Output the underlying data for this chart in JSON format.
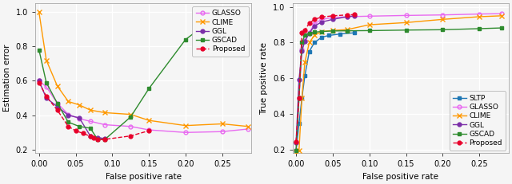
{
  "plot1": {
    "xlabel": "False positive rate",
    "ylabel": "Estimation error",
    "xlim": [
      -0.005,
      0.29
    ],
    "ylim": [
      0.18,
      1.05
    ],
    "xticks": [
      0.0,
      0.05,
      0.1,
      0.15,
      0.2,
      0.25
    ],
    "yticks": [
      0.2,
      0.4,
      0.6,
      0.8,
      1.0
    ],
    "series": {
      "GLASSO": {
        "x": [
          0.0,
          0.01,
          0.025,
          0.04,
          0.055,
          0.07,
          0.09,
          0.125,
          0.15,
          0.2,
          0.25,
          0.285
        ],
        "y": [
          0.6,
          0.565,
          0.47,
          0.405,
          0.38,
          0.365,
          0.345,
          0.335,
          0.315,
          0.3,
          0.305,
          0.32
        ],
        "color": "#e86af0",
        "marker": "o",
        "markerfacecolor": "none",
        "linestyle": "-",
        "linewidth": 1.0,
        "markersize": 3.5
      },
      "CLIME": {
        "x": [
          0.0,
          0.01,
          0.025,
          0.04,
          0.055,
          0.07,
          0.09,
          0.125,
          0.15,
          0.2,
          0.25,
          0.285
        ],
        "y": [
          1.0,
          0.72,
          0.57,
          0.48,
          0.46,
          0.43,
          0.415,
          0.405,
          0.37,
          0.34,
          0.35,
          0.335
        ],
        "color": "#ff9900",
        "marker": "x",
        "markerfacecolor": "#ff9900",
        "linestyle": "-",
        "linewidth": 1.0,
        "markersize": 4.0
      },
      "GGL": {
        "x": [
          0.0,
          0.01,
          0.025,
          0.04,
          0.055,
          0.07,
          0.08,
          0.09
        ],
        "y": [
          0.6,
          0.5,
          0.45,
          0.4,
          0.385,
          0.28,
          0.27,
          0.265
        ],
        "color": "#7b2fa8",
        "marker": "o",
        "markerfacecolor": "#7b2fa8",
        "linestyle": "-",
        "linewidth": 1.0,
        "markersize": 3.5
      },
      "GSCAD": {
        "x": [
          0.0,
          0.01,
          0.025,
          0.04,
          0.055,
          0.07,
          0.08,
          0.09,
          0.125,
          0.15,
          0.2,
          0.25
        ],
        "y": [
          0.78,
          0.59,
          0.47,
          0.36,
          0.335,
          0.325,
          0.26,
          0.26,
          0.39,
          0.555,
          0.84,
          1.0
        ],
        "color": "#2e8b2e",
        "marker": "s",
        "markerfacecolor": "#2e8b2e",
        "linestyle": "-",
        "linewidth": 1.0,
        "markersize": 3.5
      },
      "Proposed": {
        "x": [
          0.0,
          0.01,
          0.025,
          0.04,
          0.05,
          0.06,
          0.07,
          0.075,
          0.08,
          0.09,
          0.125,
          0.15
        ],
        "y": [
          0.59,
          0.51,
          0.43,
          0.335,
          0.31,
          0.295,
          0.278,
          0.268,
          0.258,
          0.26,
          0.28,
          0.31
        ],
        "color": "#e8002a",
        "marker": "o",
        "markerfacecolor": "#e8002a",
        "linestyle": "--",
        "linewidth": 1.0,
        "markersize": 3.5
      }
    },
    "legend_loc": "upper right",
    "legend_keys": [
      "GLASSO",
      "CLIME",
      "GGL",
      "GSCAD",
      "Proposed"
    ]
  },
  "plot2": {
    "xlabel": "False positive rate",
    "ylabel": "True positive rate",
    "xlim": [
      -0.005,
      0.29
    ],
    "ylim": [
      0.18,
      1.02
    ],
    "xticks": [
      0.0,
      0.05,
      0.1,
      0.15,
      0.2,
      0.25
    ],
    "yticks": [
      0.2,
      0.4,
      0.6,
      0.8,
      1.0
    ],
    "series": {
      "SLTP": {
        "x": [
          0.0,
          0.004,
          0.008,
          0.012,
          0.018,
          0.025,
          0.035,
          0.045,
          0.06,
          0.08
        ],
        "y": [
          0.195,
          0.345,
          0.49,
          0.615,
          0.75,
          0.8,
          0.83,
          0.84,
          0.848,
          0.855
        ],
        "color": "#1f77b4",
        "marker": "s",
        "markerfacecolor": "#1f77b4",
        "linestyle": "-",
        "linewidth": 1.0,
        "markersize": 3.5
      },
      "GLASSO": {
        "x": [
          0.0,
          0.004,
          0.008,
          0.012,
          0.018,
          0.025,
          0.035,
          0.05,
          0.07,
          0.1,
          0.15,
          0.2,
          0.25,
          0.28
        ],
        "y": [
          0.195,
          0.49,
          0.76,
          0.81,
          0.855,
          0.905,
          0.93,
          0.94,
          0.945,
          0.948,
          0.952,
          0.955,
          0.96,
          0.962
        ],
        "color": "#e86af0",
        "marker": "o",
        "markerfacecolor": "none",
        "linestyle": "-",
        "linewidth": 1.0,
        "markersize": 3.5
      },
      "CLIME": {
        "x": [
          0.0,
          0.004,
          0.008,
          0.012,
          0.018,
          0.025,
          0.035,
          0.05,
          0.07,
          0.1,
          0.15,
          0.2,
          0.25,
          0.28
        ],
        "y": [
          0.185,
          0.195,
          0.49,
          0.69,
          0.8,
          0.84,
          0.862,
          0.868,
          0.873,
          0.9,
          0.912,
          0.93,
          0.945,
          0.95
        ],
        "color": "#ff9900",
        "marker": "x",
        "markerfacecolor": "#ff9900",
        "linestyle": "-",
        "linewidth": 1.0,
        "markersize": 4.0
      },
      "GGL": {
        "x": [
          0.0,
          0.004,
          0.008,
          0.012,
          0.018,
          0.025,
          0.035,
          0.05,
          0.07,
          0.08
        ],
        "y": [
          0.24,
          0.59,
          0.755,
          0.807,
          0.853,
          0.893,
          0.915,
          0.93,
          0.945,
          0.95
        ],
        "color": "#7b2fa8",
        "marker": "o",
        "markerfacecolor": "#7b2fa8",
        "linestyle": "-",
        "linewidth": 1.0,
        "markersize": 3.5
      },
      "GSCAD": {
        "x": [
          0.0,
          0.004,
          0.008,
          0.012,
          0.018,
          0.025,
          0.035,
          0.05,
          0.07,
          0.1,
          0.15,
          0.2,
          0.25,
          0.28
        ],
        "y": [
          0.195,
          0.49,
          0.8,
          0.84,
          0.852,
          0.858,
          0.862,
          0.865,
          0.866,
          0.867,
          0.87,
          0.872,
          0.878,
          0.882
        ],
        "color": "#2e8b2e",
        "marker": "s",
        "markerfacecolor": "#2e8b2e",
        "linestyle": "-",
        "linewidth": 1.0,
        "markersize": 3.5
      },
      "Proposed": {
        "x": [
          0.0,
          0.004,
          0.008,
          0.012,
          0.018,
          0.025,
          0.035,
          0.05,
          0.07,
          0.08
        ],
        "y": [
          0.245,
          0.49,
          0.855,
          0.87,
          0.908,
          0.93,
          0.943,
          0.95,
          0.955,
          0.957
        ],
        "color": "#e8002a",
        "marker": "o",
        "markerfacecolor": "#e8002a",
        "linestyle": "--",
        "linewidth": 1.0,
        "markersize": 3.5
      }
    },
    "legend_loc": "lower right",
    "legend_keys": [
      "SLTP",
      "GLASSO",
      "CLIME",
      "GGL",
      "GSCAD",
      "Proposed"
    ]
  },
  "bg_color": "#f5f5f5",
  "plot_bg_color": "#f5f5f5",
  "grid_color": "#ffffff",
  "fontsize": 7.5,
  "tick_fontsize": 7
}
